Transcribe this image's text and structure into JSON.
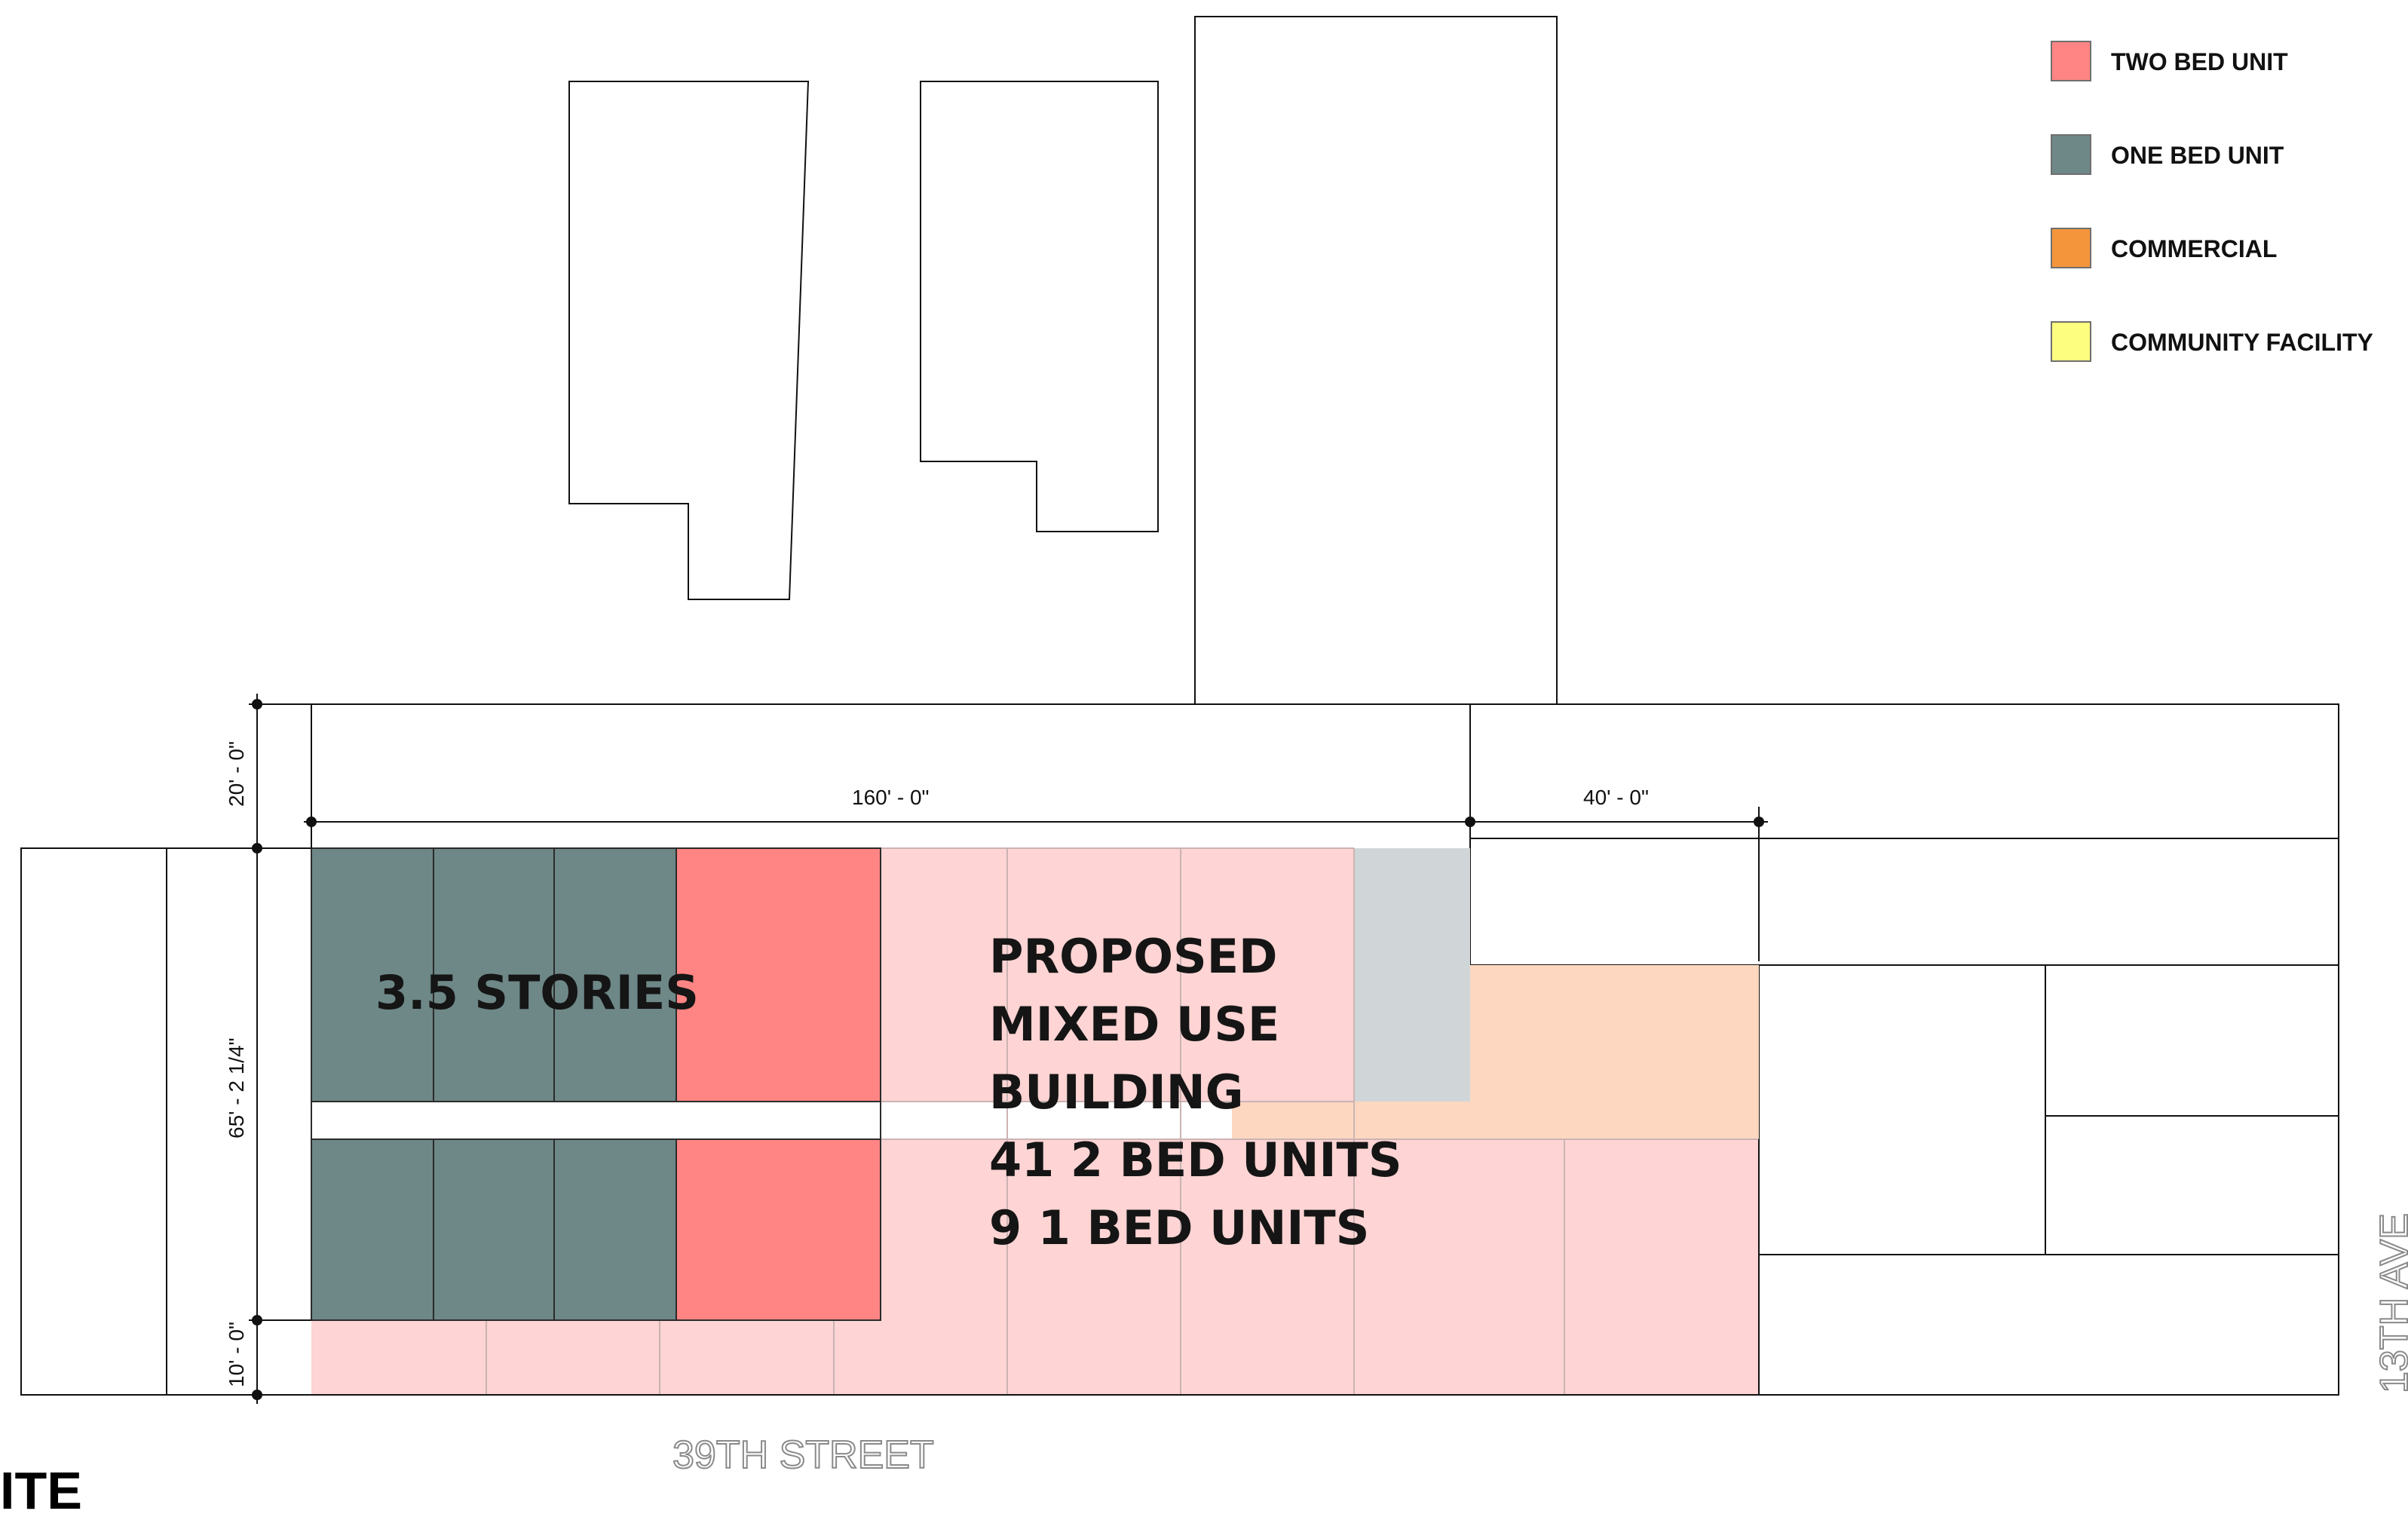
{
  "legend": [
    {
      "label": "TWO BED UNIT",
      "color": "#fe8583"
    },
    {
      "label": "ONE BED UNIT",
      "color": "#6e8787"
    },
    {
      "label": "COMMERCIAL",
      "color": "#f5953b"
    },
    {
      "label": "COMMUNITY FACILITY",
      "color": "#fdfd80"
    }
  ],
  "building_labels": {
    "stories": "3.5 STORIES",
    "proposed_lines": [
      "PROPOSED",
      "MIXED USE",
      "BUILDING",
      "41 2 BED UNITS",
      "9 1 BED UNITS"
    ]
  },
  "dimensions": {
    "frontage": "160' - 0\"",
    "corner": "40' - 0\"",
    "rear_yard": "20' - 0\"",
    "depth": "65' - 2 1/4\"",
    "front_setback": "10' - 0\""
  },
  "streets": {
    "south": "39TH STREET",
    "east": "13TH AVE"
  },
  "cut_title": "ITE",
  "colors": {
    "two_bed_unit": "#fe8583",
    "one_bed_unit": "#6e8787",
    "proposed_light": "#fed4d4",
    "commercial_light": "#fdd7c0",
    "grey_unit": "#d0d6d7",
    "line": "#111111"
  }
}
